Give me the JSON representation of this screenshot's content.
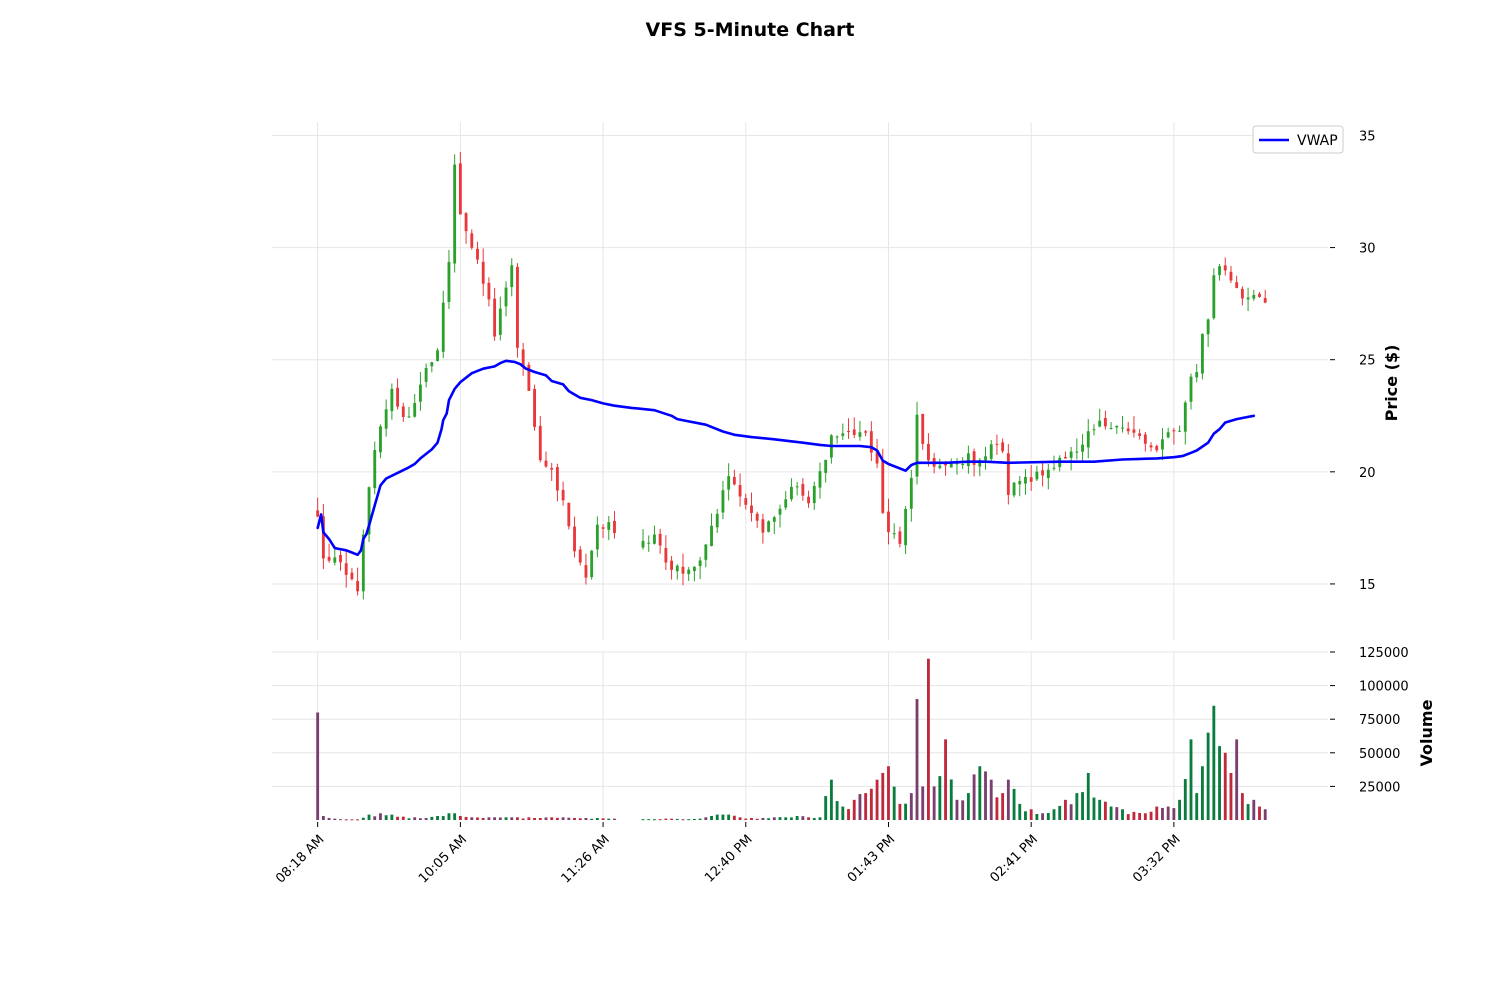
{
  "chart_data": {
    "type": "candlestick",
    "title": "VFS 5-Minute Chart",
    "price_panel": {
      "ylabel": "Price ($)",
      "ylim": [
        12.5,
        35.6
      ],
      "yticks": [
        15,
        20,
        25,
        30,
        35
      ],
      "grid": true
    },
    "volume_panel": {
      "ylabel": "Volume",
      "ylim": [
        0,
        125000
      ],
      "yticks": [
        25000,
        50000,
        75000,
        100000,
        125000
      ],
      "grid": true
    },
    "x_axis": {
      "tick_labels": [
        "08:18 AM",
        "10:05 AM",
        "11:26 AM",
        "12:40 PM",
        "01:43 PM",
        "02:41 PM",
        "03:32 PM"
      ],
      "tick_positions": [
        0,
        25,
        50,
        75,
        100,
        125,
        150
      ],
      "range": [
        -8,
        177
      ]
    },
    "legend": {
      "placement": "top-right",
      "entries": [
        "VWAP"
      ]
    },
    "colors": {
      "up": "#2ca02c",
      "down": "#e8383b",
      "vwap": "#0000ff",
      "vol_up": "#0a7c3e",
      "vol_down": "#c0283c",
      "vol_mixed": "#7a3f6e"
    },
    "anchors": [
      [
        0,
        18.2,
        80000
      ],
      [
        1,
        16.0,
        3000
      ],
      [
        3,
        16.3,
        1000
      ],
      [
        5,
        15.2,
        500
      ],
      [
        7,
        14.8,
        500
      ],
      [
        9,
        19.5,
        4000
      ],
      [
        11,
        22.0,
        5000
      ],
      [
        13,
        23.5,
        4000
      ],
      [
        15,
        22.3,
        2500
      ],
      [
        17,
        23.0,
        2000
      ],
      [
        19,
        24.5,
        1500
      ],
      [
        21,
        25.5,
        3000
      ],
      [
        23,
        29.2,
        5000
      ],
      [
        24,
        33.5,
        5000
      ],
      [
        25,
        31.5,
        3000
      ],
      [
        27,
        30.2,
        2000
      ],
      [
        29,
        28.5,
        1500
      ],
      [
        30,
        27.5,
        2000
      ],
      [
        31,
        26.0,
        2000
      ],
      [
        33,
        28.2,
        2000
      ],
      [
        34,
        29.0,
        2000
      ],
      [
        35,
        25.5,
        2000
      ],
      [
        37,
        23.5,
        2000
      ],
      [
        38,
        22.0,
        1500
      ],
      [
        39,
        20.5,
        1500
      ],
      [
        41,
        20.3,
        2000
      ],
      [
        43,
        18.5,
        2000
      ],
      [
        45,
        16.5,
        1500
      ],
      [
        47,
        15.5,
        1500
      ],
      [
        49,
        17.5,
        1500
      ],
      [
        51,
        17.8,
        1000
      ],
      [
        53,
        17.2,
        800
      ],
      [
        55,
        16.5,
        600
      ],
      [
        57,
        16.7,
        600
      ],
      [
        59,
        17.3,
        600
      ],
      [
        61,
        16.0,
        1000
      ],
      [
        63,
        15.7,
        800
      ],
      [
        65,
        15.6,
        600
      ],
      [
        67,
        16.2,
        1000
      ],
      [
        69,
        17.5,
        3000
      ],
      [
        71,
        19.0,
        4000
      ],
      [
        72,
        19.6,
        4000
      ],
      [
        74,
        18.8,
        2000
      ],
      [
        76,
        18.4,
        1500
      ],
      [
        78,
        17.5,
        1500
      ],
      [
        80,
        18.2,
        2000
      ],
      [
        82,
        18.8,
        2000
      ],
      [
        84,
        19.4,
        3000
      ],
      [
        86,
        18.8,
        2000
      ],
      [
        88,
        19.8,
        2000
      ],
      [
        90,
        21.5,
        30000
      ],
      [
        92,
        21.5,
        10000
      ],
      [
        94,
        21.8,
        15000
      ],
      [
        96,
        21.7,
        20000
      ],
      [
        98,
        20.5,
        30000
      ],
      [
        99,
        18.0,
        35000
      ],
      [
        100,
        17.3,
        40000
      ],
      [
        102,
        17.0,
        12000
      ],
      [
        104,
        19.5,
        20000
      ],
      [
        105,
        22.5,
        90000
      ],
      [
        106,
        21.2,
        25000
      ],
      [
        107,
        20.5,
        120000
      ],
      [
        108,
        20.3,
        25000
      ],
      [
        110,
        20.5,
        60000
      ],
      [
        112,
        20.4,
        15000
      ],
      [
        114,
        20.6,
        20000
      ],
      [
        116,
        20.4,
        40000
      ],
      [
        118,
        21.2,
        30000
      ],
      [
        120,
        21.0,
        20000
      ],
      [
        121,
        19.2,
        30000
      ],
      [
        123,
        19.5,
        12000
      ],
      [
        125,
        19.8,
        8000
      ],
      [
        127,
        19.9,
        5000
      ],
      [
        129,
        20.3,
        8000
      ],
      [
        131,
        20.6,
        15000
      ],
      [
        133,
        21.0,
        20000
      ],
      [
        135,
        21.7,
        35000
      ],
      [
        137,
        22.2,
        15000
      ],
      [
        139,
        22.0,
        10000
      ],
      [
        141,
        22.0,
        8000
      ],
      [
        143,
        21.6,
        6000
      ],
      [
        145,
        21.5,
        5000
      ],
      [
        147,
        21.0,
        10000
      ],
      [
        149,
        21.7,
        10000
      ],
      [
        151,
        21.8,
        15000
      ],
      [
        153,
        24.0,
        60000
      ],
      [
        154,
        24.5,
        20000
      ],
      [
        155,
        26.0,
        40000
      ],
      [
        156,
        26.8,
        65000
      ],
      [
        157,
        29.0,
        85000
      ],
      [
        158,
        29.3,
        55000
      ],
      [
        159,
        28.8,
        50000
      ],
      [
        160,
        28.5,
        35000
      ],
      [
        161,
        28.0,
        60000
      ],
      [
        162,
        27.5,
        20000
      ],
      [
        164,
        28.0,
        15000
      ],
      [
        165,
        27.6,
        10000
      ],
      [
        166,
        27.6,
        8000
      ]
    ],
    "gaps": [
      [
        52,
        57
      ]
    ],
    "vwap": {
      "name": "VWAP",
      "points": [
        [
          0,
          17.5
        ],
        [
          0.6,
          18.1
        ],
        [
          1,
          17.3
        ],
        [
          2,
          17.0
        ],
        [
          3,
          16.6
        ],
        [
          5,
          16.5
        ],
        [
          6,
          16.4
        ],
        [
          7,
          16.3
        ],
        [
          7.6,
          16.5
        ],
        [
          8,
          17.0
        ],
        [
          8.5,
          17.2
        ],
        [
          9,
          17.6
        ],
        [
          10,
          18.5
        ],
        [
          11,
          19.4
        ],
        [
          12,
          19.7
        ],
        [
          14,
          19.95
        ],
        [
          16,
          20.2
        ],
        [
          17,
          20.35
        ],
        [
          18,
          20.6
        ],
        [
          20,
          21.0
        ],
        [
          21,
          21.3
        ],
        [
          21.7,
          21.9
        ],
        [
          22,
          22.3
        ],
        [
          22.6,
          22.6
        ],
        [
          23,
          23.2
        ],
        [
          24,
          23.7
        ],
        [
          25,
          24.0
        ],
        [
          27,
          24.4
        ],
        [
          29,
          24.6
        ],
        [
          31,
          24.7
        ],
        [
          32,
          24.85
        ],
        [
          33,
          24.95
        ],
        [
          34.5,
          24.9
        ],
        [
          35.5,
          24.8
        ],
        [
          36.5,
          24.6
        ],
        [
          38,
          24.45
        ],
        [
          40,
          24.3
        ],
        [
          41,
          24.05
        ],
        [
          43,
          23.9
        ],
        [
          44,
          23.6
        ],
        [
          45,
          23.45
        ],
        [
          46,
          23.3
        ],
        [
          48,
          23.2
        ],
        [
          50,
          23.05
        ],
        [
          52,
          22.95
        ],
        [
          55,
          22.85
        ],
        [
          59,
          22.75
        ],
        [
          62,
          22.5
        ],
        [
          63,
          22.35
        ],
        [
          65,
          22.25
        ],
        [
          68,
          22.1
        ],
        [
          71,
          21.8
        ],
        [
          73,
          21.65
        ],
        [
          76,
          21.55
        ],
        [
          80,
          21.45
        ],
        [
          85,
          21.3
        ],
        [
          88,
          21.2
        ],
        [
          90,
          21.15
        ],
        [
          95,
          21.15
        ],
        [
          97,
          21.1
        ],
        [
          98,
          20.95
        ],
        [
          99,
          20.5
        ],
        [
          100,
          20.35
        ],
        [
          103,
          20.05
        ],
        [
          104,
          20.3
        ],
        [
          105,
          20.4
        ],
        [
          110,
          20.4
        ],
        [
          114,
          20.45
        ],
        [
          117,
          20.45
        ],
        [
          121,
          20.4
        ],
        [
          130,
          20.45
        ],
        [
          136,
          20.45
        ],
        [
          141,
          20.55
        ],
        [
          147,
          20.6
        ],
        [
          150,
          20.65
        ],
        [
          151.5,
          20.7
        ],
        [
          153,
          20.85
        ],
        [
          154,
          20.95
        ],
        [
          156,
          21.3
        ],
        [
          157,
          21.7
        ],
        [
          158,
          21.9
        ],
        [
          159,
          22.2
        ],
        [
          161,
          22.35
        ],
        [
          162,
          22.4
        ],
        [
          163,
          22.45
        ],
        [
          164,
          22.5
        ]
      ]
    }
  }
}
